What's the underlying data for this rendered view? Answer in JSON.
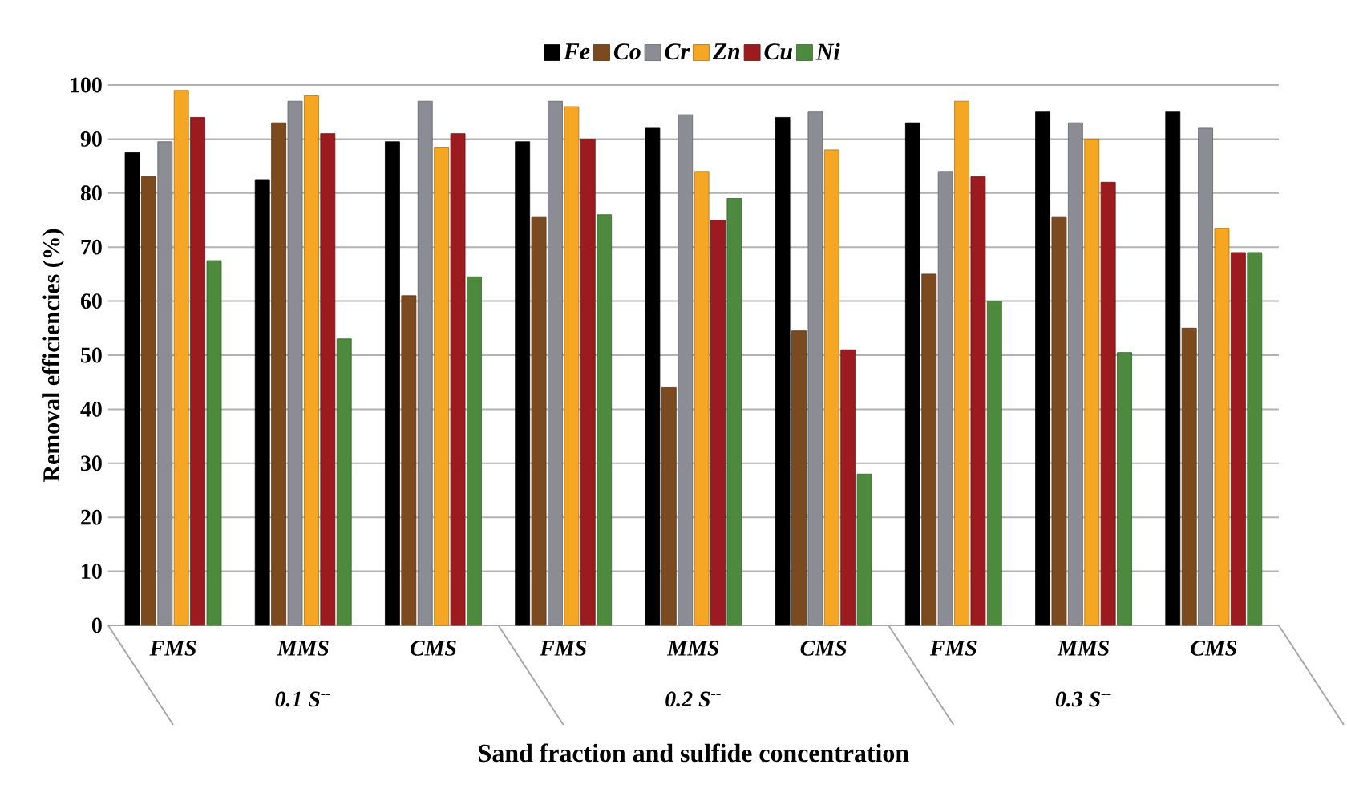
{
  "chart_data": {
    "type": "bar",
    "xlabel": "Sand fraction and sulfide concentration",
    "ylabel": "Removal efficiencies (%)",
    "categories": [
      "FMS",
      "MMS",
      "CMS",
      "FMS",
      "MMS",
      "CMS",
      "FMS",
      "MMS",
      "CMS"
    ],
    "annotations": [
      "0.1 S$^{--}$",
      "0.2 S$^{--}$",
      "0.3 S$^{--}$"
    ],
    "series": [
      {
        "name": "Fe",
        "color": "#000000",
        "values": [
          87.5,
          82.5,
          89.5,
          89.5,
          92,
          94,
          93,
          95,
          95
        ]
      },
      {
        "name": "Co",
        "color": "#7b4a1e",
        "values": [
          83,
          93,
          61,
          75.5,
          44,
          54.5,
          65,
          75.5,
          55
        ]
      },
      {
        "name": "Cr",
        "color": "#8c8d94",
        "values": [
          89.5,
          97,
          97,
          97,
          94.5,
          95,
          84,
          93,
          92
        ]
      },
      {
        "name": "Zn",
        "color": "#f5a623",
        "values": [
          99,
          98,
          88.5,
          96,
          84,
          88,
          97,
          90,
          73.5
        ]
      },
      {
        "name": "Cu",
        "color": "#9b1b1f",
        "values": [
          94,
          91,
          91,
          90,
          75,
          51,
          83,
          82,
          69
        ]
      },
      {
        "name": "Ni",
        "color": "#4e8a3e",
        "values": [
          67.5,
          53,
          64.5,
          76,
          79,
          28,
          60,
          50.5,
          69
        ]
      }
    ],
    "ylim": [
      0,
      100
    ],
    "yticks": [
      0,
      10,
      20,
      30,
      40,
      50,
      60,
      70,
      80,
      90,
      100
    ],
    "grid": "y",
    "legend": "top"
  }
}
